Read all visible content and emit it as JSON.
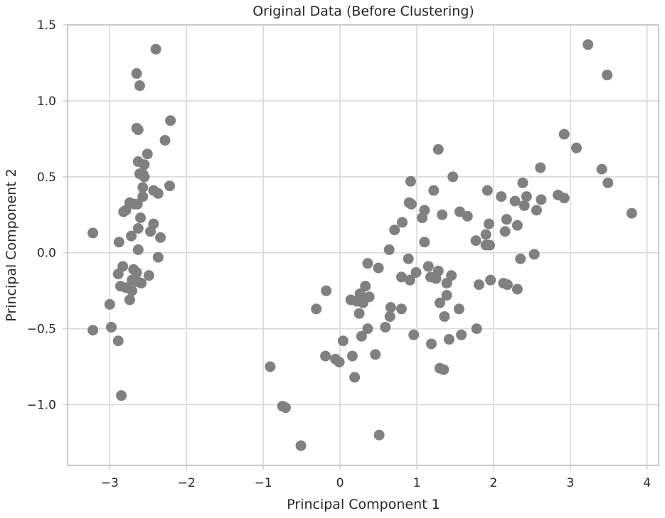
{
  "chart_data": {
    "type": "scatter",
    "title": "Original Data (Before Clustering)",
    "xlabel": "Principal Component 1",
    "ylabel": "Principal Component 2",
    "xlim": [
      -3.55,
      4.15
    ],
    "ylim": [
      -1.4,
      1.5
    ],
    "xticks": [
      -3,
      -2,
      -1,
      0,
      1,
      2,
      3,
      4
    ],
    "yticks": [
      -1.0,
      -0.5,
      0.0,
      0.5,
      1.0,
      1.5
    ],
    "xtick_labels": [
      "−3",
      "−2",
      "−1",
      "0",
      "1",
      "2",
      "3",
      "4"
    ],
    "ytick_labels": [
      "−1.0",
      "−0.5",
      "0.0",
      "0.5",
      "1.0",
      "1.5"
    ],
    "grid": true,
    "point_color": "#808080",
    "points": [
      [
        -2.4,
        1.34
      ],
      [
        -2.65,
        1.18
      ],
      [
        -2.61,
        1.1
      ],
      [
        -2.65,
        0.82
      ],
      [
        -2.63,
        0.81
      ],
      [
        -2.21,
        0.87
      ],
      [
        -2.28,
        0.74
      ],
      [
        -2.51,
        0.65
      ],
      [
        -2.55,
        0.58
      ],
      [
        -2.63,
        0.6
      ],
      [
        -2.57,
        0.52
      ],
      [
        -2.61,
        0.52
      ],
      [
        -2.55,
        0.5
      ],
      [
        -2.37,
        0.39
      ],
      [
        -2.22,
        0.44
      ],
      [
        -2.57,
        0.43
      ],
      [
        -2.43,
        0.41
      ],
      [
        -2.57,
        0.37
      ],
      [
        -2.74,
        0.33
      ],
      [
        -2.68,
        0.32
      ],
      [
        -2.64,
        0.32
      ],
      [
        -2.79,
        0.28
      ],
      [
        -2.82,
        0.27
      ],
      [
        -2.6,
        0.23
      ],
      [
        -2.43,
        0.19
      ],
      [
        -2.63,
        0.16
      ],
      [
        -2.47,
        0.14
      ],
      [
        -2.72,
        0.11
      ],
      [
        -2.34,
        0.1
      ],
      [
        -2.88,
        0.07
      ],
      [
        -3.22,
        0.13
      ],
      [
        -2.63,
        0.02
      ],
      [
        -2.37,
        -0.03
      ],
      [
        -2.83,
        -0.09
      ],
      [
        -2.69,
        -0.11
      ],
      [
        -2.65,
        -0.13
      ],
      [
        -2.89,
        -0.14
      ],
      [
        -2.49,
        -0.15
      ],
      [
        -2.71,
        -0.18
      ],
      [
        -2.64,
        -0.19
      ],
      [
        -2.59,
        -0.2
      ],
      [
        -2.86,
        -0.22
      ],
      [
        -2.79,
        -0.23
      ],
      [
        -2.71,
        -0.25
      ],
      [
        -2.74,
        -0.31
      ],
      [
        -3.0,
        -0.34
      ],
      [
        -2.98,
        -0.49
      ],
      [
        -3.22,
        -0.51
      ],
      [
        -2.89,
        -0.58
      ],
      [
        -2.85,
        -0.94
      ],
      [
        -0.91,
        -0.75
      ],
      [
        -0.75,
        -1.01
      ],
      [
        -0.71,
        -1.02
      ],
      [
        -0.51,
        -1.27
      ],
      [
        0.51,
        -1.2
      ],
      [
        -0.31,
        -0.37
      ],
      [
        -0.18,
        -0.25
      ],
      [
        -0.19,
        -0.68
      ],
      [
        -0.06,
        -0.7
      ],
      [
        -0.01,
        -0.72
      ],
      [
        0.04,
        -0.58
      ],
      [
        0.16,
        -0.68
      ],
      [
        0.19,
        -0.82
      ],
      [
        0.14,
        -0.31
      ],
      [
        0.22,
        -0.32
      ],
      [
        0.25,
        -0.4
      ],
      [
        0.26,
        -0.27
      ],
      [
        0.28,
        -0.55
      ],
      [
        0.3,
        -0.33
      ],
      [
        0.33,
        -0.22
      ],
      [
        0.38,
        -0.29
      ],
      [
        0.36,
        -0.5
      ],
      [
        0.36,
        -0.07
      ],
      [
        0.46,
        -0.67
      ],
      [
        0.5,
        -0.1
      ],
      [
        0.59,
        -0.49
      ],
      [
        0.65,
        -0.42
      ],
      [
        0.66,
        -0.36
      ],
      [
        0.64,
        0.02
      ],
      [
        0.71,
        0.15
      ],
      [
        0.81,
        0.2
      ],
      [
        0.8,
        -0.37
      ],
      [
        0.8,
        -0.16
      ],
      [
        0.89,
        -0.04
      ],
      [
        0.9,
        0.33
      ],
      [
        0.93,
        0.32
      ],
      [
        0.91,
        -0.18
      ],
      [
        0.92,
        0.47
      ],
      [
        0.96,
        -0.54
      ],
      [
        0.99,
        -0.13
      ],
      [
        1.07,
        0.23
      ],
      [
        1.1,
        0.28
      ],
      [
        1.1,
        0.07
      ],
      [
        1.15,
        -0.09
      ],
      [
        1.18,
        -0.16
      ],
      [
        1.19,
        -0.6
      ],
      [
        1.22,
        0.41
      ],
      [
        1.25,
        -0.17
      ],
      [
        1.28,
        -0.12
      ],
      [
        1.3,
        -0.33
      ],
      [
        1.28,
        0.68
      ],
      [
        1.3,
        -0.76
      ],
      [
        1.33,
        0.25
      ],
      [
        1.35,
        -0.77
      ],
      [
        1.36,
        -0.42
      ],
      [
        1.39,
        -0.28
      ],
      [
        1.39,
        -0.2
      ],
      [
        1.42,
        -0.57
      ],
      [
        1.45,
        -0.15
      ],
      [
        1.47,
        0.5
      ],
      [
        1.55,
        -0.37
      ],
      [
        1.56,
        0.27
      ],
      [
        1.58,
        -0.54
      ],
      [
        1.66,
        0.24
      ],
      [
        1.77,
        0.08
      ],
      [
        1.78,
        -0.5
      ],
      [
        1.81,
        -0.21
      ],
      [
        1.9,
        0.12
      ],
      [
        1.9,
        0.05
      ],
      [
        1.92,
        0.41
      ],
      [
        1.94,
        0.19
      ],
      [
        1.95,
        0.05
      ],
      [
        1.96,
        -0.18
      ],
      [
        2.1,
        0.37
      ],
      [
        2.13,
        -0.2
      ],
      [
        2.15,
        0.14
      ],
      [
        2.17,
        0.22
      ],
      [
        2.18,
        -0.21
      ],
      [
        2.28,
        0.34
      ],
      [
        2.31,
        0.18
      ],
      [
        2.31,
        -0.24
      ],
      [
        2.35,
        -0.04
      ],
      [
        2.38,
        0.46
      ],
      [
        2.4,
        0.31
      ],
      [
        2.43,
        0.37
      ],
      [
        2.53,
        -0.01
      ],
      [
        2.56,
        0.28
      ],
      [
        2.62,
        0.35
      ],
      [
        2.61,
        0.56
      ],
      [
        2.84,
        0.38
      ],
      [
        2.92,
        0.36
      ],
      [
        2.92,
        0.78
      ],
      [
        3.08,
        0.69
      ],
      [
        3.41,
        0.55
      ],
      [
        3.49,
        0.46
      ],
      [
        3.23,
        1.37
      ],
      [
        3.48,
        1.17
      ],
      [
        3.8,
        0.26
      ]
    ]
  }
}
